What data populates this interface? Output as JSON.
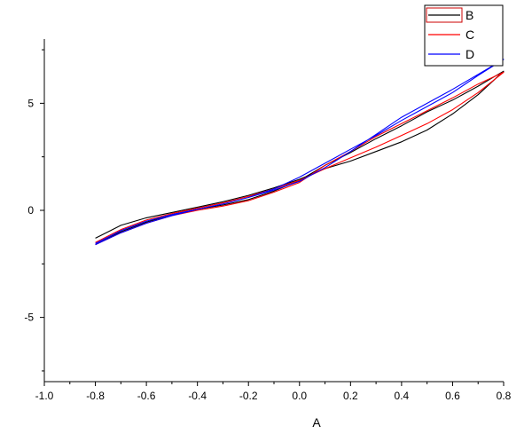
{
  "chart_data": {
    "type": "line",
    "title": "",
    "xlabel": "A",
    "ylabel": "",
    "xlim": [
      -1.0,
      0.8
    ],
    "ylim": [
      -8,
      8
    ],
    "grid": false,
    "legend_position": "top-right",
    "x_ticks": [
      {
        "value": -1.0,
        "label": "-1.0"
      },
      {
        "value": -0.8,
        "label": "-0.8"
      },
      {
        "value": -0.6,
        "label": "-0.6"
      },
      {
        "value": -0.4,
        "label": "-0.4"
      },
      {
        "value": -0.2,
        "label": "-0.2"
      },
      {
        "value": 0.0,
        "label": "0.0"
      },
      {
        "value": 0.2,
        "label": "0.2"
      },
      {
        "value": 0.4,
        "label": "0.4"
      },
      {
        "value": 0.6,
        "label": "0.6"
      },
      {
        "value": 0.8,
        "label": "0.8"
      }
    ],
    "y_ticks": [
      {
        "value": 5,
        "label": "5"
      },
      {
        "value": 0,
        "label": "0"
      },
      {
        "value": -5,
        "label": "-5"
      }
    ],
    "series": [
      {
        "name": "B",
        "color": "#000000",
        "x": [
          -0.8,
          -0.7,
          -0.6,
          -0.5,
          -0.4,
          -0.3,
          -0.2,
          -0.1,
          0.0,
          0.1,
          0.2,
          0.3,
          0.4,
          0.5,
          0.6,
          0.7,
          0.8,
          0.7,
          0.6,
          0.5,
          0.4,
          0.3,
          0.2,
          0.1,
          0.0,
          -0.1,
          -0.2,
          -0.3,
          -0.4,
          -0.5,
          -0.6,
          -0.7,
          -0.8
        ],
        "y": [
          -1.3,
          -0.7,
          -0.35,
          -0.1,
          0.15,
          0.4,
          0.7,
          1.05,
          1.45,
          1.95,
          2.3,
          2.75,
          3.2,
          3.75,
          4.5,
          5.4,
          6.5,
          5.8,
          5.15,
          4.6,
          3.95,
          3.35,
          2.7,
          2.1,
          1.4,
          0.9,
          0.5,
          0.25,
          0.05,
          -0.2,
          -0.55,
          -1.0,
          -1.6
        ]
      },
      {
        "name": "C",
        "color": "#ff0000",
        "x": [
          -0.8,
          -0.7,
          -0.6,
          -0.5,
          -0.4,
          -0.3,
          -0.2,
          -0.1,
          0.0,
          0.1,
          0.2,
          0.3,
          0.4,
          0.5,
          0.6,
          0.7,
          0.8,
          0.7,
          0.6,
          0.5,
          0.4,
          0.3,
          0.2,
          0.1,
          0.0,
          -0.1,
          -0.2,
          -0.3,
          -0.4,
          -0.5,
          -0.6,
          -0.7,
          -0.8
        ],
        "y": [
          -1.5,
          -0.9,
          -0.45,
          -0.15,
          0.1,
          0.35,
          0.65,
          1.0,
          1.4,
          1.95,
          2.45,
          2.95,
          3.5,
          4.05,
          4.7,
          5.5,
          6.45,
          5.9,
          5.25,
          4.65,
          4.05,
          3.45,
          2.75,
          2.1,
          1.3,
          0.85,
          0.45,
          0.2,
          0.0,
          -0.25,
          -0.6,
          -1.05,
          -1.6
        ]
      },
      {
        "name": "D",
        "color": "#0000ff",
        "x": [
          -0.8,
          -0.7,
          -0.6,
          -0.5,
          -0.4,
          -0.3,
          -0.2,
          -0.1,
          0.0,
          0.1,
          0.2,
          0.3,
          0.4,
          0.5,
          0.6,
          0.7,
          0.8,
          0.7,
          0.6,
          0.5,
          0.4,
          0.3,
          0.2,
          0.1,
          0.0,
          -0.1,
          -0.2,
          -0.3,
          -0.4,
          -0.5,
          -0.6,
          -0.7,
          -0.8
        ],
        "y": [
          -1.55,
          -0.95,
          -0.5,
          -0.2,
          0.05,
          0.3,
          0.6,
          0.95,
          1.35,
          2.0,
          2.75,
          3.55,
          4.35,
          5.0,
          5.65,
          6.35,
          7.05,
          6.3,
          5.5,
          4.85,
          4.2,
          3.5,
          2.85,
          2.2,
          1.55,
          1.0,
          0.6,
          0.3,
          0.05,
          -0.25,
          -0.6,
          -1.05,
          -1.6
        ]
      }
    ]
  }
}
